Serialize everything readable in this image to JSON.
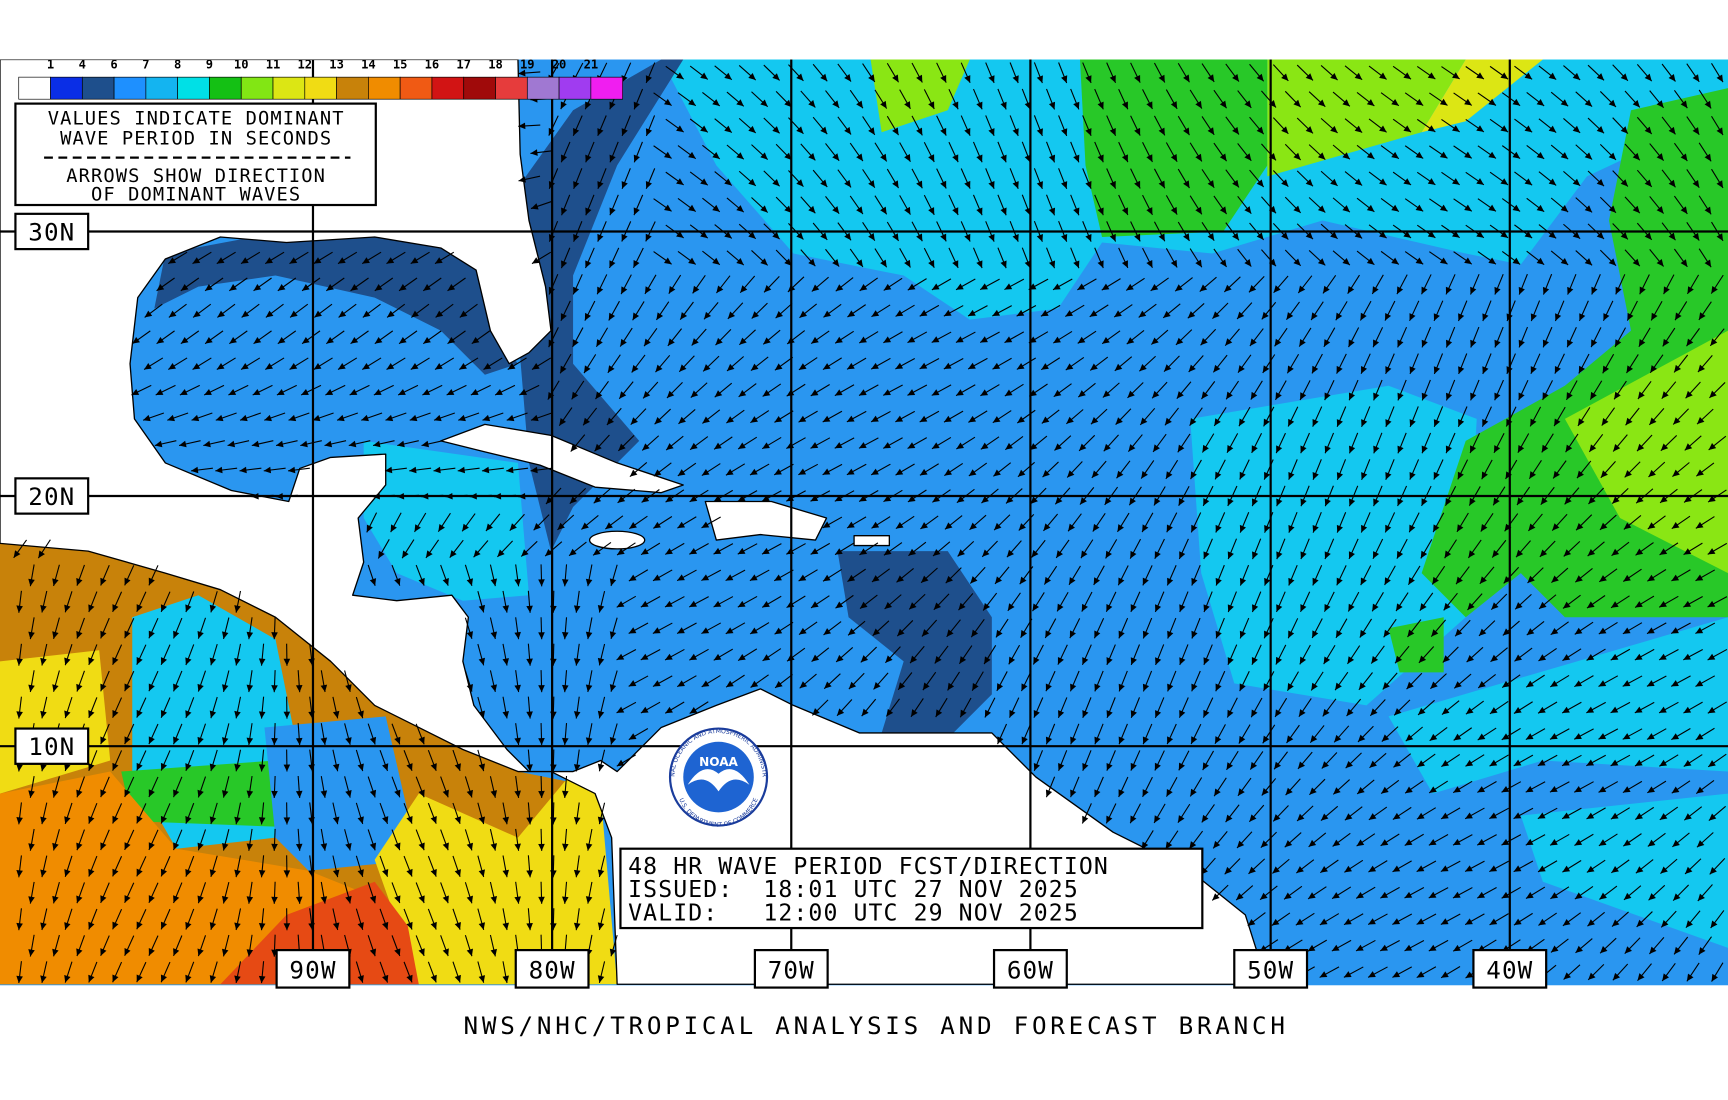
{
  "legend": {
    "labels": [
      "1",
      "4",
      "6",
      "7",
      "8",
      "9",
      "10",
      "11",
      "12",
      "13",
      "14",
      "15",
      "16",
      "17",
      "18",
      "19",
      "20",
      "21"
    ],
    "colors": [
      "#ffffff",
      "#0a2ee6",
      "#1e4f8c",
      "#1e90ff",
      "#14b4f0",
      "#00e0e6",
      "#14c014",
      "#82e614",
      "#dce614",
      "#f0dc14",
      "#c8820a",
      "#f08c00",
      "#f05a14",
      "#d21414",
      "#a00a0a",
      "#e63c3c",
      "#a078d2",
      "#a03cf0",
      "#f01ef0"
    ]
  },
  "legend_box": {
    "lines": [
      "VALUES INDICATE DOMINANT",
      "WAVE PERIOD IN SECONDS",
      "ARROWS SHOW DIRECTION",
      "OF DOMINANT WAVES"
    ]
  },
  "lat_labels": [
    "30N",
    "20N",
    "10N"
  ],
  "lon_labels": [
    "90W",
    "80W",
    "70W",
    "60W",
    "50W",
    "40W"
  ],
  "logo": {
    "name": "NOAA",
    "ring_top": "NATIONAL OCEANIC AND ATMOSPHERIC ADMINISTRATION",
    "ring_bottom": "U.S. DEPARTMENT OF COMMERCE"
  },
  "info_box": {
    "lines": [
      "48 HR WAVE PERIOD FCST/DIRECTION",
      "ISSUED:  18:01 UTC 27 NOV 2025",
      "VALID:   12:00 UTC 29 NOV 2025"
    ]
  },
  "footer": "NWS/NHC/TROPICAL ANALYSIS AND FORECAST BRANCH"
}
